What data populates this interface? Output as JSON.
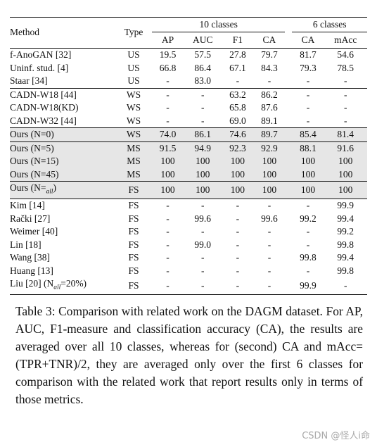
{
  "table": {
    "header": {
      "method": "Method",
      "type": "Type",
      "group_10": "10 classes",
      "group_6": "6 classes",
      "cols_10": [
        "AP",
        "AUC",
        "F1",
        "CA"
      ],
      "cols_6": [
        "CA",
        "mAcc"
      ]
    },
    "sections": [
      {
        "shaded": false,
        "rows": [
          {
            "method": "f-AnoGAN [32]",
            "type": "US",
            "values": [
              "19.5",
              "57.5",
              "27.8",
              "79.7",
              "81.7",
              "54.6"
            ]
          },
          {
            "method": "Uninf. stud. [4]",
            "type": "US",
            "values": [
              "66.8",
              "86.4",
              "67.1",
              "84.3",
              "79.3",
              "78.5"
            ]
          },
          {
            "method": "Staar [34]",
            "type": "US",
            "values": [
              "-",
              "83.0",
              "-",
              "-",
              "-",
              "-"
            ]
          }
        ]
      },
      {
        "shaded": false,
        "rows": [
          {
            "method": "CADN-W18 [44]",
            "type": "WS",
            "values": [
              "-",
              "-",
              "63.2",
              "86.2",
              "-",
              "-"
            ]
          },
          {
            "method": "CADN-W18(KD)",
            "type": "WS",
            "values": [
              "-",
              "-",
              "65.8",
              "87.6",
              "-",
              "-"
            ]
          },
          {
            "method": "CADN-W32 [44]",
            "type": "WS",
            "values": [
              "-",
              "-",
              "69.0",
              "89.1",
              "-",
              "-"
            ]
          }
        ]
      },
      {
        "shaded": true,
        "rows": [
          {
            "method": "Ours (N=0)",
            "type": "WS",
            "values": [
              "74.0",
              "86.1",
              "74.6",
              "89.7",
              "85.4",
              "81.4"
            ]
          }
        ]
      },
      {
        "shaded": true,
        "rows": [
          {
            "method": "Ours (N=5)",
            "type": "MS",
            "values": [
              "91.5",
              "94.9",
              "92.3",
              "92.9",
              "88.1",
              "91.6"
            ]
          },
          {
            "method": "Ours (N=15)",
            "type": "MS",
            "values": [
              "100",
              "100",
              "100",
              "100",
              "100",
              "100"
            ]
          },
          {
            "method": "Ours (N=45)",
            "type": "MS",
            "values": [
              "100",
              "100",
              "100",
              "100",
              "100",
              "100"
            ]
          }
        ]
      },
      {
        "shaded": true,
        "rows": [
          {
            "method": "Ours (N=",
            "method_sub": "all",
            "method_tail": ")",
            "type": "FS",
            "values": [
              "100",
              "100",
              "100",
              "100",
              "100",
              "100"
            ]
          }
        ]
      },
      {
        "shaded": false,
        "rows": [
          {
            "method": "Kim [14]",
            "type": "FS",
            "values": [
              "-",
              "-",
              "-",
              "-",
              "-",
              "99.9"
            ]
          },
          {
            "method": "Rački [27]",
            "type": "FS",
            "values": [
              "-",
              "99.6",
              "-",
              "99.6",
              "99.2",
              "99.4"
            ]
          },
          {
            "method": "Weimer [40]",
            "type": "FS",
            "values": [
              "-",
              "-",
              "-",
              "-",
              "-",
              "99.2"
            ]
          },
          {
            "method": "Lin [18]",
            "type": "FS",
            "values": [
              "-",
              "99.0",
              "-",
              "-",
              "-",
              "99.8"
            ]
          },
          {
            "method": "Wang [38]",
            "type": "FS",
            "values": [
              "-",
              "-",
              "-",
              "-",
              "99.8",
              "99.4"
            ]
          },
          {
            "method": "Huang [13]",
            "type": "FS",
            "values": [
              "-",
              "-",
              "-",
              "-",
              "-",
              "99.8"
            ]
          },
          {
            "method": "Liu [20] (N",
            "method_sub": "all",
            "method_tail": "=20%)",
            "type": "FS",
            "values": [
              "-",
              "-",
              "-",
              "-",
              "99.9",
              "-"
            ]
          }
        ]
      }
    ]
  },
  "caption": "Table 3: Comparison with related work on the DAGM dataset. For AP, AUC, F1-measure and classification accuracy (CA), the results are averaged over all 10 classes, whereas for (second) CA and mAcc=(TPR+TNR)/2, they are averaged only over the first 6 classes for comparison with the related work that report results only in terms of those metrics.",
  "watermark": "CSDN @怪人i命"
}
